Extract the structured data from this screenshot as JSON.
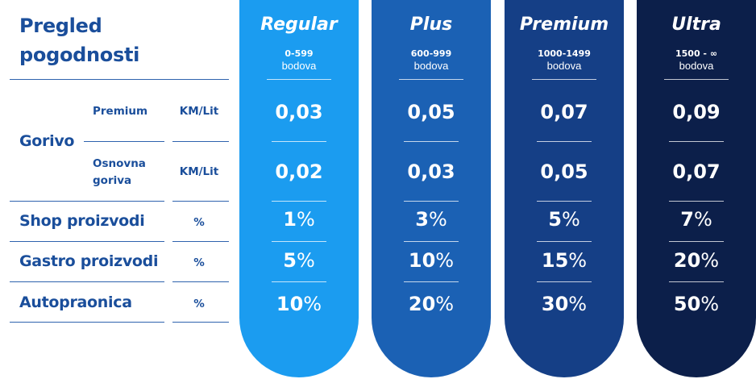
{
  "title": {
    "line1": "Pregled",
    "line2": "pogodnosti"
  },
  "rows": {
    "fuel": {
      "label": "Gorivo"
    },
    "fuel_premium": {
      "label": "Premium",
      "unit": "KM/Lit"
    },
    "fuel_basic": {
      "label_line1": "Osnovna",
      "label_line2": "goriva",
      "unit": "KM/Lit"
    },
    "shop": {
      "label": "Shop proizvodi",
      "unit": "%"
    },
    "gastro": {
      "label": "Gastro proizvodi",
      "unit": "%"
    },
    "carwash": {
      "label": "Autopraonica",
      "unit": "%"
    }
  },
  "tiers": [
    {
      "name": "Regular",
      "range": "0-599",
      "points": "bodova",
      "premium": "0,03",
      "basic": "0,02",
      "shop": "1",
      "gastro": "5",
      "carwash": "10",
      "color": "#1b9cf0"
    },
    {
      "name": "Plus",
      "range": "600-999",
      "points": "bodova",
      "premium": "0,05",
      "basic": "0,03",
      "shop": "3",
      "gastro": "10",
      "carwash": "20",
      "color": "#1b61b4"
    },
    {
      "name": "Premium",
      "range": "1000-1499",
      "points": "bodova",
      "premium": "0,07",
      "basic": "0,05",
      "shop": "5",
      "gastro": "15",
      "carwash": "30",
      "color": "#153f86"
    },
    {
      "name": "Ultra",
      "range": "1500 - ∞",
      "points": "bodova",
      "premium": "0,09",
      "basic": "0,07",
      "shop": "7",
      "gastro": "20",
      "carwash": "50",
      "color": "#0c1f4a"
    }
  ],
  "percent_sign": "%"
}
